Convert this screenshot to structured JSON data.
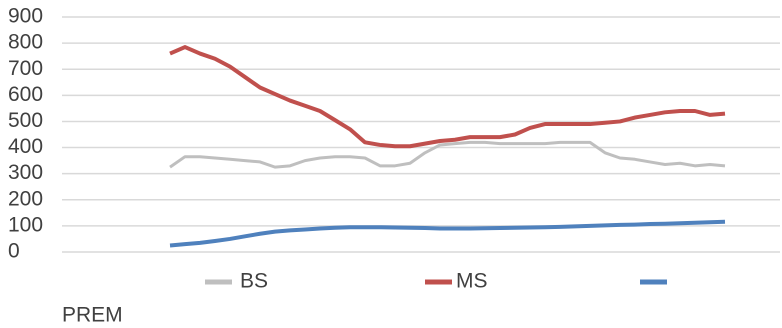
{
  "chart_data": {
    "type": "line",
    "categories": [
      null,
      null,
      null,
      null,
      null,
      null,
      null,
      null,
      null,
      null,
      null,
      null,
      null,
      null,
      null,
      null,
      null,
      null,
      null,
      null,
      null,
      null,
      null,
      null,
      null,
      null,
      null,
      null,
      null,
      null,
      null,
      null,
      null,
      null,
      null,
      null,
      null,
      null
    ],
    "series": [
      {
        "name": "BS",
        "color": "#bfbfbf",
        "values": [
          325,
          365,
          365,
          360,
          355,
          350,
          345,
          325,
          330,
          350,
          360,
          365,
          365,
          360,
          330,
          330,
          340,
          380,
          410,
          415,
          420,
          420,
          415,
          415,
          415,
          415,
          420,
          420,
          420,
          380,
          360,
          355,
          345,
          335,
          340,
          330,
          335,
          330
        ]
      },
      {
        "name": "MS",
        "color": "#c0504d",
        "values": [
          760,
          785,
          760,
          740,
          710,
          670,
          630,
          605,
          580,
          560,
          540,
          505,
          470,
          420,
          410,
          405,
          405,
          415,
          425,
          430,
          440,
          440,
          440,
          450,
          475,
          490,
          490,
          490,
          490,
          495,
          500,
          515,
          525,
          535,
          540,
          540,
          525,
          530
        ]
      },
      {
        "name": "PREM",
        "color": "#4f81bd",
        "values": [
          25,
          30,
          35,
          42,
          50,
          60,
          70,
          78,
          83,
          86,
          90,
          93,
          95,
          95,
          95,
          94,
          93,
          92,
          90,
          90,
          90,
          91,
          92,
          93,
          94,
          95,
          96,
          98,
          100,
          102,
          104,
          105,
          107,
          108,
          110,
          112,
          114,
          116
        ]
      }
    ],
    "ylim": [
      0,
      900
    ],
    "yticks": [
      0,
      100,
      200,
      300,
      400,
      500,
      600,
      700,
      800,
      900
    ],
    "grid": true,
    "legend": "bottom"
  }
}
